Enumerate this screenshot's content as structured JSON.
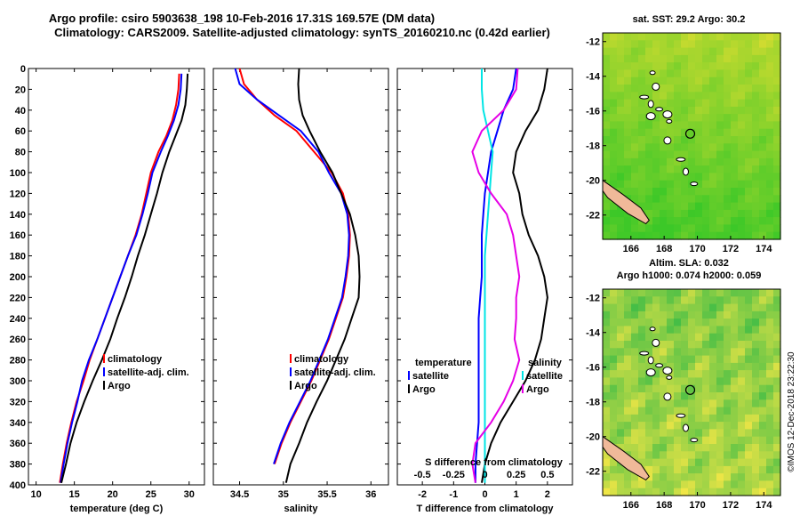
{
  "title_line1": "Argo profile: csiro 5903638_198 10-Feb-2016 17.31S 169.57E (DM data)",
  "title_line2": "Climatology: CARS2009. Satellite-adjusted climatology: synTS_20160210.nc (0.42d earlier)",
  "watermark": "©IMOS 12-Dec-2018 23:22:30",
  "colors": {
    "climatology": "#ff0000",
    "satellite": "#0000ff",
    "argo": "#000000",
    "satellite_s": "#00e5e5",
    "climatology_s": "#e600e6",
    "land": "#f0b999"
  },
  "chart_data": [
    {
      "type": "line",
      "id": "temperature",
      "xlabel": "temperature (deg C)",
      "ylabel": "",
      "xlim": [
        9,
        32
      ],
      "ylim": [
        400,
        0
      ],
      "xticks": [
        10,
        15,
        20,
        25,
        30
      ],
      "yticks": [
        0,
        20,
        40,
        60,
        80,
        100,
        120,
        140,
        160,
        180,
        200,
        220,
        240,
        260,
        280,
        300,
        320,
        340,
        360,
        380,
        400
      ],
      "legend": [
        "climatology",
        "satellite-adj. clim.",
        "Argo"
      ],
      "series": [
        {
          "name": "climatology",
          "color": "#ff0000",
          "x": [
            28.7,
            28.6,
            28.3,
            27.8,
            27.0,
            26.0,
            25.0,
            24.4,
            23.8,
            23.0,
            22.0,
            21.0,
            20.0,
            19.0,
            18.0,
            17.0,
            16.2,
            15.3,
            14.6,
            14.0,
            13.5,
            13.1
          ],
          "y": [
            5,
            20,
            35,
            50,
            65,
            80,
            100,
            120,
            140,
            160,
            180,
            200,
            220,
            240,
            260,
            280,
            300,
            320,
            340,
            360,
            380,
            398
          ]
        },
        {
          "name": "satellite-adj. clim.",
          "color": "#0000ff",
          "x": [
            29.0,
            28.9,
            28.6,
            28.0,
            27.2,
            26.3,
            25.2,
            24.6,
            23.9,
            23.1,
            22.0,
            21.0,
            20.0,
            19.0,
            18.0,
            16.9,
            16.0,
            15.4,
            14.7,
            14.1,
            13.6,
            13.2
          ],
          "y": [
            5,
            20,
            35,
            50,
            65,
            80,
            100,
            120,
            140,
            160,
            180,
            200,
            220,
            240,
            260,
            280,
            300,
            320,
            340,
            360,
            380,
            398
          ]
        },
        {
          "name": "Argo",
          "color": "#000000",
          "x": [
            29.8,
            29.7,
            29.5,
            29.0,
            28.2,
            27.4,
            26.5,
            25.8,
            25.0,
            24.2,
            23.3,
            22.5,
            21.6,
            20.6,
            19.7,
            18.6,
            17.4,
            16.3,
            15.3,
            14.5,
            13.9,
            13.3
          ],
          "y": [
            5,
            20,
            35,
            50,
            65,
            80,
            100,
            120,
            140,
            160,
            180,
            200,
            220,
            240,
            260,
            280,
            300,
            320,
            340,
            360,
            380,
            398
          ]
        }
      ]
    },
    {
      "type": "line",
      "id": "salinity",
      "xlabel": "salinity",
      "xlim": [
        34.2,
        36.2
      ],
      "ylim": [
        400,
        0
      ],
      "xticks": [
        34.5,
        35,
        35.5,
        36
      ],
      "legend": [
        "climatology",
        "satellite-adj. clim.",
        "Argo"
      ],
      "series": [
        {
          "name": "climatology",
          "color": "#ff0000",
          "x": [
            34.5,
            34.55,
            34.7,
            34.9,
            35.15,
            35.35,
            35.55,
            35.68,
            35.74,
            35.76,
            35.75,
            35.72,
            35.68,
            35.6,
            35.52,
            35.42,
            35.32,
            35.2,
            35.08,
            34.98,
            34.9
          ],
          "y": [
            0,
            15,
            30,
            45,
            60,
            80,
            100,
            120,
            140,
            160,
            180,
            200,
            220,
            240,
            260,
            280,
            300,
            320,
            340,
            360,
            380
          ]
        },
        {
          "name": "satellite-adj. clim.",
          "color": "#0000ff",
          "x": [
            34.45,
            34.5,
            34.7,
            34.95,
            35.2,
            35.4,
            35.52,
            35.66,
            35.73,
            35.75,
            35.74,
            35.71,
            35.67,
            35.59,
            35.51,
            35.41,
            35.31,
            35.19,
            35.07,
            34.97,
            34.89
          ],
          "y": [
            0,
            15,
            30,
            45,
            60,
            80,
            100,
            120,
            140,
            160,
            180,
            200,
            220,
            240,
            260,
            280,
            300,
            320,
            340,
            360,
            380
          ]
        },
        {
          "name": "Argo",
          "color": "#000000",
          "x": [
            35.18,
            35.17,
            35.18,
            35.22,
            35.3,
            35.42,
            35.56,
            35.66,
            35.76,
            35.82,
            35.86,
            35.87,
            35.86,
            35.78,
            35.7,
            35.6,
            35.5,
            35.38,
            35.27,
            35.18,
            35.08,
            35.03
          ],
          "y": [
            0,
            15,
            30,
            45,
            60,
            80,
            100,
            120,
            140,
            160,
            180,
            200,
            220,
            240,
            260,
            280,
            300,
            320,
            340,
            360,
            380,
            398
          ]
        }
      ]
    },
    {
      "type": "line",
      "id": "difference",
      "xlabel": "T difference from climatology",
      "top_xlabel": "S difference from climatology",
      "xlim": [
        -2.8,
        2.8
      ],
      "ylim": [
        400,
        0
      ],
      "xticks": [
        -2,
        -1,
        0,
        1,
        2
      ],
      "top_xticks": [
        -0.5,
        -0.25,
        0,
        0.25,
        0.5
      ],
      "top_ticklabels": [
        "-0.5",
        "-0.25",
        "0",
        "0.25",
        "0.5"
      ],
      "legend_temperature": {
        "title": "temperature",
        "items": [
          "satellite",
          "Argo"
        ]
      },
      "legend_salinity": {
        "title": "salinity",
        "items": [
          "satellite",
          "Argo"
        ]
      },
      "series": [
        {
          "name": "T satellite",
          "color": "#0000ff",
          "x": [
            1.0,
            0.9,
            0.6,
            0.4,
            0.2,
            0.1,
            0.0,
            -0.05,
            -0.1,
            -0.1,
            -0.1,
            -0.15,
            -0.2,
            -0.2,
            -0.2,
            -0.2,
            -0.2,
            -0.2,
            -0.25,
            -0.3,
            -0.3
          ],
          "y": [
            0,
            20,
            40,
            60,
            80,
            100,
            120,
            140,
            160,
            180,
            200,
            220,
            240,
            260,
            280,
            300,
            320,
            340,
            360,
            380,
            398
          ]
        },
        {
          "name": "T Argo",
          "color": "#000000",
          "x": [
            2.0,
            1.9,
            1.7,
            1.3,
            1.0,
            0.9,
            1.1,
            1.2,
            1.4,
            1.7,
            1.9,
            2.0,
            1.9,
            1.8,
            1.6,
            1.3,
            0.9,
            0.5,
            0.2,
            0.0,
            -0.1
          ],
          "y": [
            0,
            20,
            40,
            60,
            80,
            100,
            120,
            140,
            160,
            180,
            200,
            220,
            240,
            260,
            280,
            300,
            320,
            340,
            360,
            380,
            398
          ]
        },
        {
          "name": "S satellite",
          "color": "#00e5e5",
          "x": [
            -0.1,
            -0.1,
            -0.05,
            0.1,
            0.25,
            0.2,
            0.15,
            0.1,
            0.05,
            0.0,
            0.0,
            0.0,
            0.0,
            0.0,
            0.0,
            0.0,
            0.0,
            0.0,
            0.0,
            0.0,
            0.0
          ],
          "y": [
            0,
            20,
            40,
            60,
            80,
            100,
            120,
            140,
            160,
            180,
            200,
            220,
            240,
            260,
            280,
            300,
            320,
            340,
            360,
            380,
            398
          ]
        },
        {
          "name": "S Argo",
          "color": "#e600e6",
          "x": [
            1.05,
            1.0,
            0.6,
            -0.1,
            -0.4,
            -0.2,
            0.2,
            0.7,
            0.9,
            1.0,
            1.1,
            1.0,
            1.0,
            0.95,
            1.1,
            0.9,
            0.6,
            0.2,
            -0.3,
            -0.4,
            -0.3
          ],
          "y": [
            0,
            20,
            40,
            60,
            80,
            100,
            120,
            140,
            160,
            180,
            200,
            220,
            240,
            260,
            280,
            300,
            320,
            340,
            360,
            380,
            398
          ]
        }
      ]
    },
    {
      "type": "heatmap",
      "id": "map_sst",
      "title": "sat. SST: 29.2 Argo: 30.2",
      "xlim": [
        164.3,
        175
      ],
      "ylim": [
        -23.4,
        -11.5
      ],
      "xticks": [
        166,
        168,
        170,
        172,
        174
      ],
      "yticks": [
        -12,
        -14,
        -16,
        -18,
        -20,
        -22
      ],
      "argo_marker": {
        "lon": 169.57,
        "lat": -17.31
      }
    },
    {
      "type": "heatmap",
      "id": "map_sla",
      "title_line1": "Altim. SLA: 0.032",
      "title_line2": "Argo h1000: 0.074 h2000: 0.059",
      "xlim": [
        164.3,
        175
      ],
      "ylim": [
        -23.4,
        -11.5
      ],
      "xticks": [
        166,
        168,
        170,
        172,
        174
      ],
      "yticks": [
        -12,
        -14,
        -16,
        -18,
        -20,
        -22
      ],
      "argo_marker": {
        "lon": 169.57,
        "lat": -17.31
      }
    }
  ]
}
